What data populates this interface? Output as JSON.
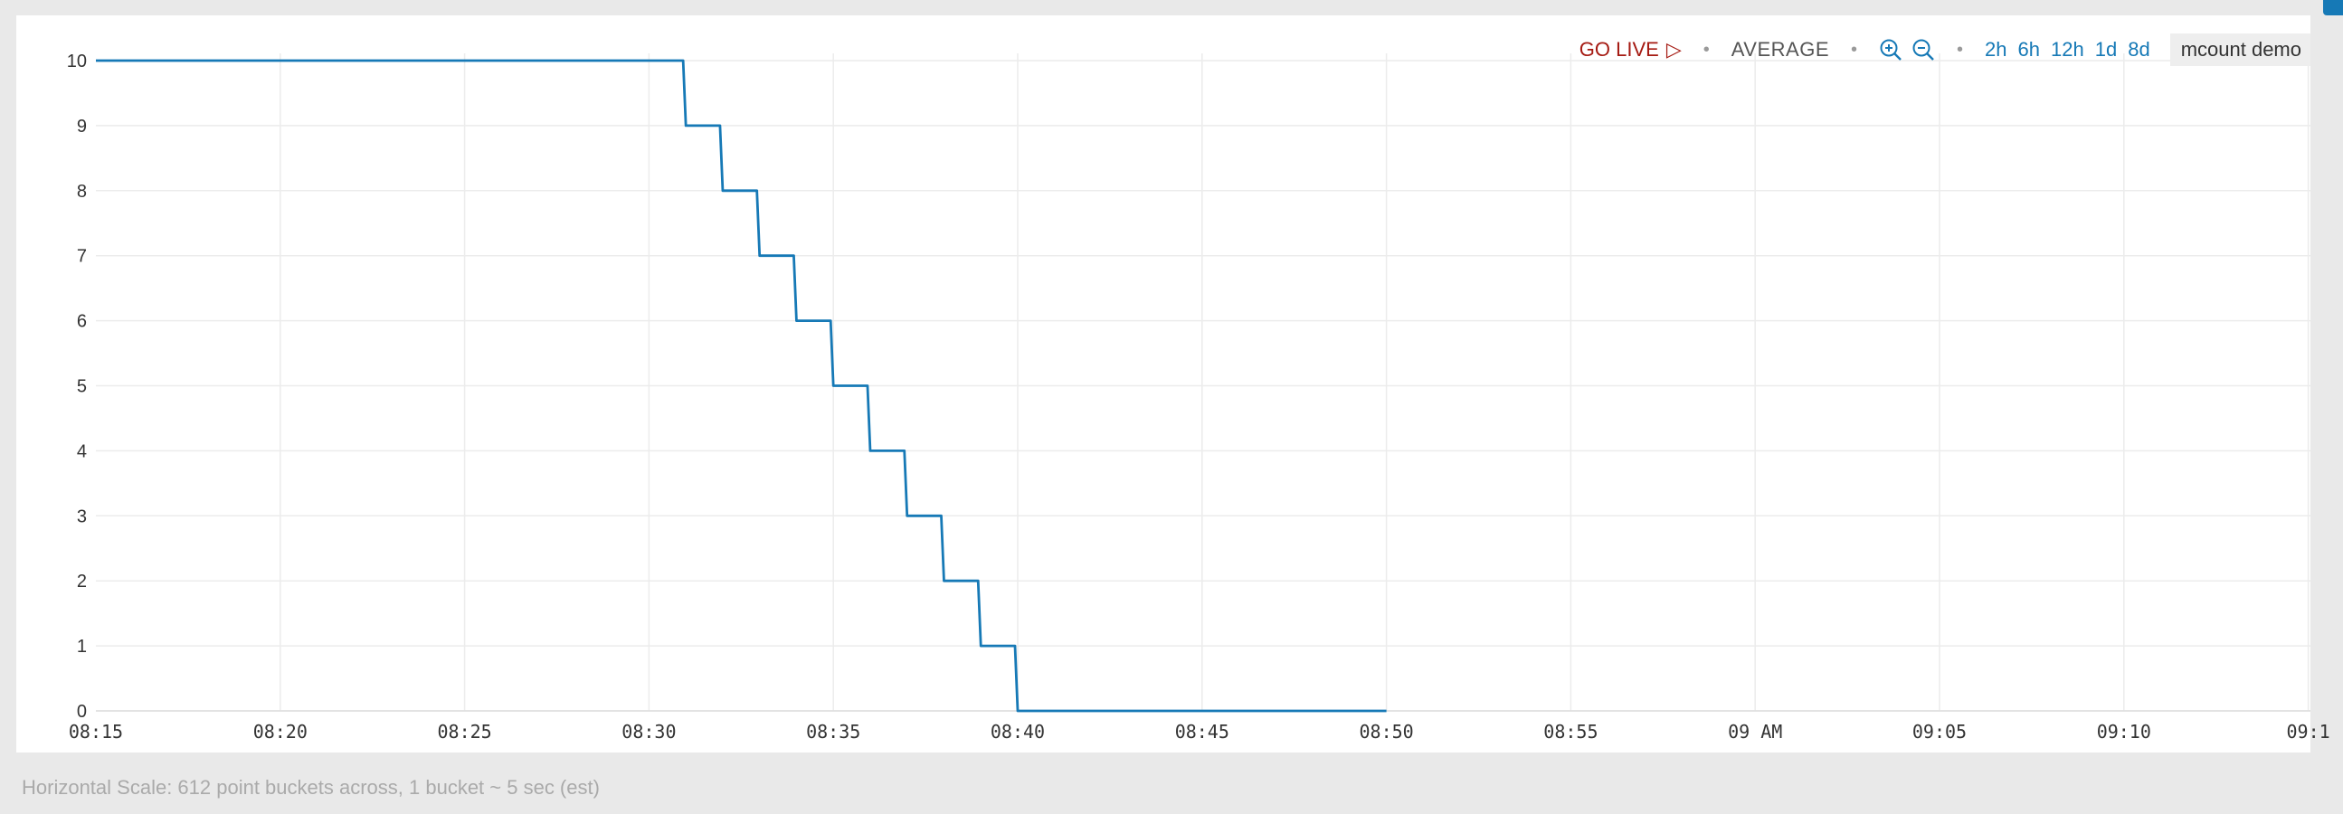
{
  "toolbar": {
    "live_label": "GO LIVE",
    "aggregation": "AVERAGE",
    "ranges": [
      "2h",
      "6h",
      "12h",
      "1d",
      "8d"
    ],
    "series_name": "mcount demo",
    "icons": [
      "play-icon",
      "zoom-in-icon",
      "zoom-out-icon"
    ]
  },
  "footer": {
    "text": "Horizontal Scale: 612 point buckets across, 1 bucket ~ 5 sec (est)"
  },
  "colors": {
    "line": "#1679b6",
    "live": "#a51a12",
    "link": "#1679b6",
    "grid": "#ececec"
  },
  "chart_data": {
    "type": "line",
    "step": true,
    "x_unit": "time (HH:MM)",
    "x_ticks": [
      "08:15",
      "08:20",
      "08:25",
      "08:30",
      "08:35",
      "08:40",
      "08:45",
      "08:50",
      "08:55",
      "09 AM",
      "09:05",
      "09:10",
      "09:1"
    ],
    "x_range": [
      "08:15",
      "09:17"
    ],
    "y_ticks": [
      0,
      1,
      2,
      3,
      4,
      5,
      6,
      7,
      8,
      9,
      10
    ],
    "ylim": [
      0,
      10
    ],
    "grid": true,
    "legend": "none",
    "series": [
      {
        "x": [
          "08:15",
          "08:31",
          "08:32",
          "08:33",
          "08:34",
          "08:35",
          "08:36",
          "08:37",
          "08:38",
          "08:39",
          "08:40",
          "08:50"
        ],
        "values": [
          10,
          9,
          8,
          7,
          6,
          5,
          4,
          3,
          2,
          1,
          0,
          0
        ]
      }
    ]
  }
}
